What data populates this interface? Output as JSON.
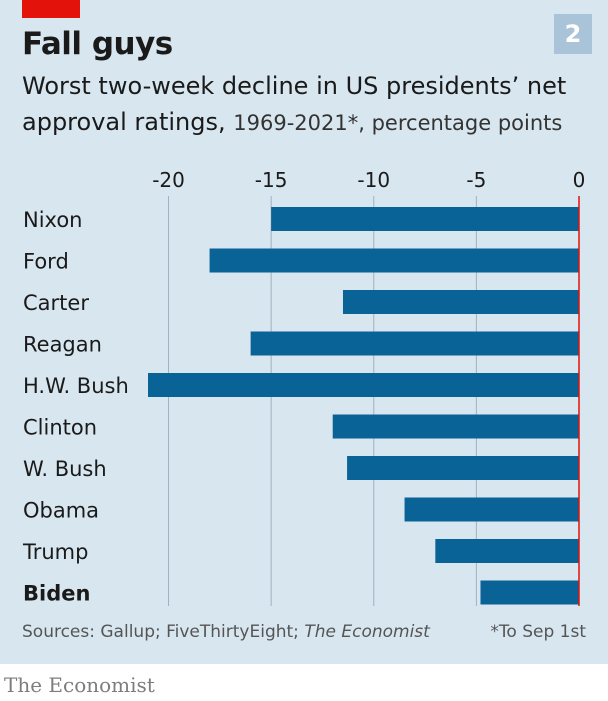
{
  "header": {
    "title": "Fall guys",
    "chart_number": "2",
    "subtitle_main": "Worst two-week decline in US presidents’ net approval ratings,",
    "subtitle_rest": "1969-2021*, percentage points"
  },
  "footer": {
    "sources_prefix": "Sources: Gallup; FiveThirtyEight;",
    "sources_publication": "The Economist",
    "note": "*To Sep 1st"
  },
  "brand": "The Economist",
  "colors": {
    "bar": "#0a6397",
    "zero_line": "#e3120b",
    "grid": "#9fb2c0",
    "panel": "#d8e6ef"
  },
  "chart_data": {
    "type": "bar",
    "orientation": "horizontal",
    "categories": [
      "Nixon",
      "Ford",
      "Carter",
      "Reagan",
      "H.W. Bush",
      "Clinton",
      "W. Bush",
      "Obama",
      "Trump",
      "Biden"
    ],
    "values": [
      -15,
      -18,
      -11.5,
      -16,
      -21,
      -12,
      -11.3,
      -8.5,
      -7,
      -4.8
    ],
    "highlight": "Biden",
    "xlim": [
      -21,
      0
    ],
    "xticks": [
      -20,
      -15,
      -10,
      -5,
      0
    ],
    "xtick_labels": [
      "-20",
      "-15",
      "-10",
      "-5",
      "0"
    ],
    "grid": true
  }
}
